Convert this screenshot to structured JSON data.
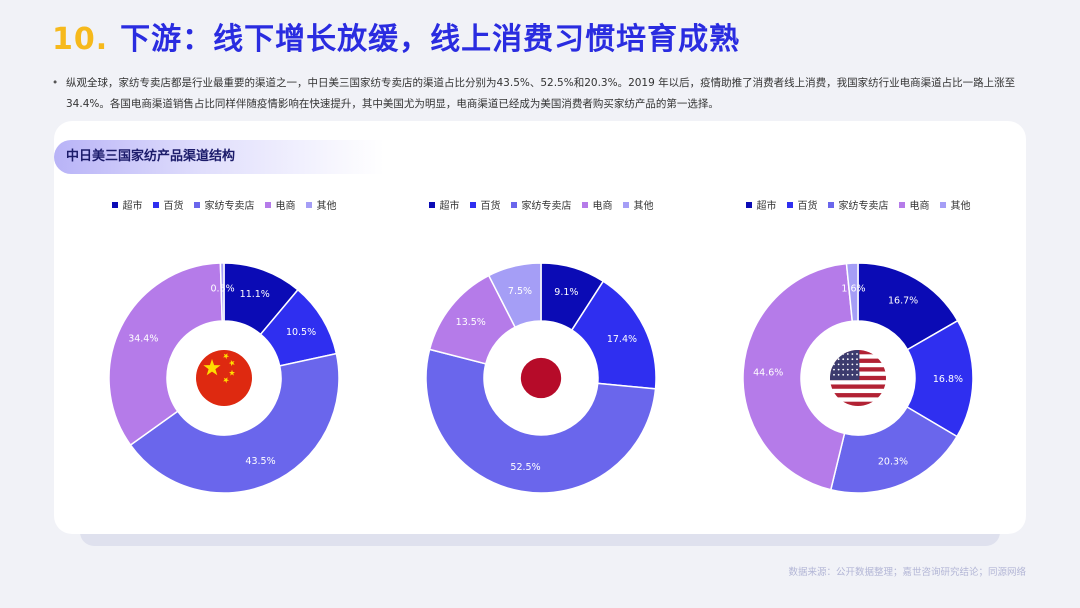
{
  "header": {
    "number": "10.",
    "title": "下游：线下增长放缓，线上消费习惯培育成熟"
  },
  "bullet_text": "纵观全球，家纺专卖店都是行业最重要的渠道之一，中日美三国家纺专卖店的渠道占比分别为43.5%、52.5%和20.3%。2019 年以后，疫情助推了消费者线上消费，我国家纺行业电商渠道占比一路上涨至34.4%。各国电商渠道销售占比同样伴随疫情影响在快速提升，其中美国尤为明显，电商渠道已经成为美国消费者购买家纺产品的第一选择。",
  "card_title": "中日美三国家纺产品渠道结构",
  "footer": "数据来源：公开数据整理；嘉世咨询研究结论；同源网络",
  "colors": {
    "title_number": "#f6b91c",
    "title_text": "#2a2ce0",
    "series": [
      "#0b0bb5",
      "#2f2ff0",
      "#6a66ec",
      "#b57be9",
      "#a59ef6"
    ]
  },
  "chart_data": [
    {
      "type": "pie",
      "variant": "donut",
      "country": "China",
      "center_icon": "china-flag-icon",
      "categories": [
        "超市",
        "百货",
        "家纺专卖店",
        "电商",
        "其他"
      ],
      "values": [
        11.1,
        10.5,
        43.5,
        34.4,
        0.5
      ],
      "labels": [
        "11.1%",
        "10.5%",
        "43.5%",
        "34.4%",
        "0.5%"
      ],
      "legend": "top"
    },
    {
      "type": "pie",
      "variant": "donut",
      "country": "Japan",
      "center_icon": "japan-flag-icon",
      "categories": [
        "超市",
        "百货",
        "家纺专卖店",
        "电商",
        "其他"
      ],
      "values": [
        9.1,
        17.4,
        52.5,
        13.5,
        7.5
      ],
      "labels": [
        "9.1%",
        "17.4%",
        "52.5%",
        "13.5%",
        "7.5%"
      ],
      "legend": "top"
    },
    {
      "type": "pie",
      "variant": "donut",
      "country": "USA",
      "center_icon": "usa-flag-icon",
      "categories": [
        "超市",
        "百货",
        "家纺专卖店",
        "电商",
        "其他"
      ],
      "values": [
        16.7,
        16.8,
        20.3,
        44.6,
        1.6
      ],
      "labels": [
        "16.7%",
        "16.8%",
        "20.3%",
        "44.6%",
        "1.6%"
      ],
      "legend": "top"
    }
  ]
}
